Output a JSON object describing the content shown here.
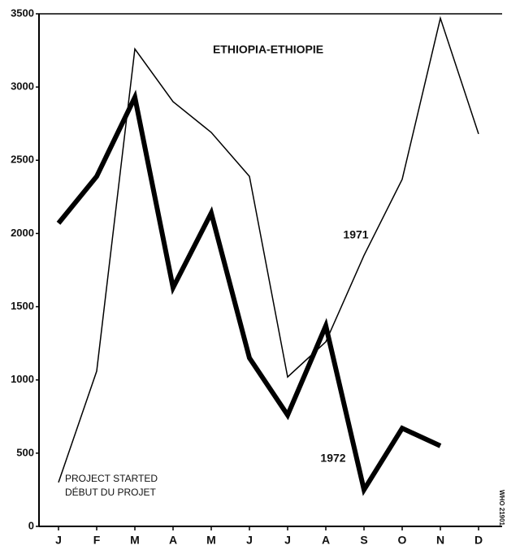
{
  "chart_data": {
    "type": "line",
    "title": "ETHIOPIA-ETHIOPIE",
    "categories": [
      "J",
      "F",
      "M",
      "A",
      "M",
      "J",
      "J",
      "A",
      "S",
      "O",
      "N",
      "D"
    ],
    "series": [
      {
        "name": "1971",
        "color": "#000000",
        "values": [
          300,
          1060,
          3260,
          2900,
          2690,
          2390,
          1020,
          1260,
          1850,
          2370,
          3470,
          2680
        ]
      },
      {
        "name": "1972",
        "color": "#000000",
        "values": [
          2070,
          2390,
          2930,
          1630,
          2140,
          1150,
          760,
          1370,
          250,
          670,
          550,
          null
        ]
      }
    ],
    "ylim": [
      0,
      3500
    ],
    "yticks": [
      0,
      500,
      1000,
      1500,
      2000,
      2500,
      3000,
      3500
    ],
    "grid": false,
    "annotations": [
      "PROJECT STARTED",
      "DÉBUT DU PROJET"
    ],
    "credit": "WHO 21901"
  }
}
